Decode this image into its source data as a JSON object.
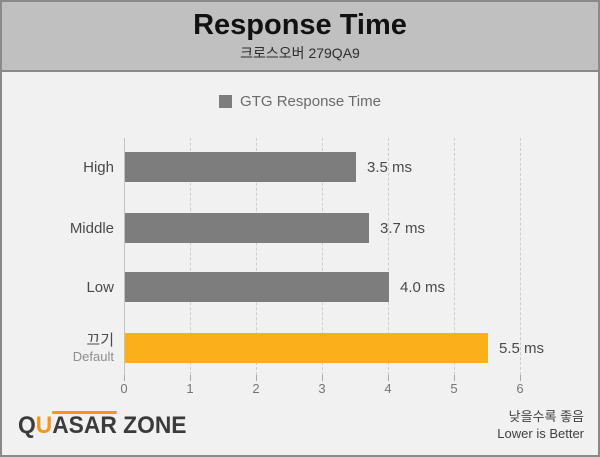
{
  "header": {
    "title": "Response Time",
    "subtitle": "크로스오버 279QA9"
  },
  "legend": {
    "label": "GTG Response Time"
  },
  "chart_data": {
    "type": "bar",
    "orientation": "horizontal",
    "title": "Response Time",
    "subtitle": "크로스오버 279QA9",
    "series_name": "GTG Response Time",
    "unit": "ms",
    "categories": [
      "High",
      "Middle",
      "Low",
      "끄기"
    ],
    "category_sublabels": [
      "",
      "",
      "",
      "Default"
    ],
    "values": [
      3.5,
      3.7,
      4.0,
      5.5
    ],
    "value_labels": [
      "3.5 ms",
      "3.7 ms",
      "4.0 ms",
      "5.5 ms"
    ],
    "bar_colors": [
      "#7d7d7d",
      "#7d7d7d",
      "#7d7d7d",
      "#fbb01b"
    ],
    "xlim": [
      0,
      6
    ],
    "x_ticks": [
      "0",
      "1",
      "2",
      "3",
      "4",
      "5",
      "6"
    ],
    "grid": "vertical-dashed",
    "legend_position": "top-center",
    "annotation": "Lower is Better"
  },
  "footer": {
    "logo_text": "QUASAR ZONE",
    "note_korean": "낮을수록 좋음",
    "note_english": "Lower is Better"
  },
  "colors": {
    "accent_orange": "#fbb01b",
    "bar_gray": "#7d7d7d",
    "header_bg": "#c0c0c0",
    "body_bg": "#f1f1f1",
    "border": "#8a8a8a"
  }
}
